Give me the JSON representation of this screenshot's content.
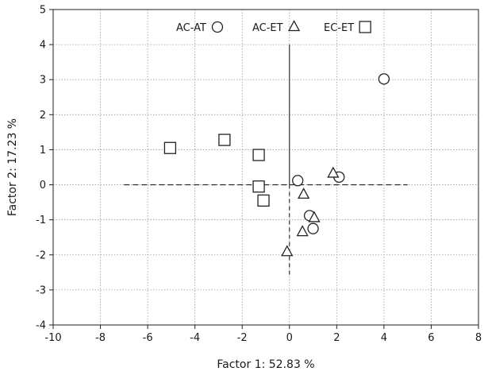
{
  "chart_data": {
    "type": "scatter",
    "xlabel": "Factor 1: 52.83 %",
    "ylabel": "Factor 2: 17.23 %",
    "xlim": [
      -10,
      8
    ],
    "ylim": [
      -4,
      5
    ],
    "xticks": [
      -10,
      -8,
      -6,
      -4,
      -2,
      0,
      2,
      4,
      6,
      8
    ],
    "yticks": [
      -4,
      -3,
      -2,
      -1,
      0,
      1,
      2,
      3,
      4,
      5
    ],
    "grid": "dotted",
    "legend_position": "top-center",
    "center_lines": {
      "horizontal_x_range": [
        -7,
        5
      ],
      "vertical_y_range": [
        -2.6,
        4
      ]
    },
    "series": [
      {
        "name": "AC-AT",
        "marker": "circle",
        "points": [
          [
            4.0,
            3.02
          ],
          [
            0.35,
            0.12
          ],
          [
            2.1,
            0.22
          ],
          [
            0.85,
            -0.88
          ],
          [
            1.0,
            -1.25
          ]
        ]
      },
      {
        "name": "AC-ET",
        "marker": "triangle",
        "points": [
          [
            1.85,
            0.32
          ],
          [
            0.6,
            -0.28
          ],
          [
            1.05,
            -0.95
          ],
          [
            0.55,
            -1.35
          ],
          [
            -0.1,
            -1.92
          ]
        ]
      },
      {
        "name": "EC-ET",
        "marker": "square",
        "points": [
          [
            -5.05,
            1.05
          ],
          [
            -2.75,
            1.28
          ],
          [
            -1.3,
            0.85
          ],
          [
            -1.3,
            -0.05
          ],
          [
            -1.1,
            -0.45
          ]
        ]
      }
    ]
  }
}
